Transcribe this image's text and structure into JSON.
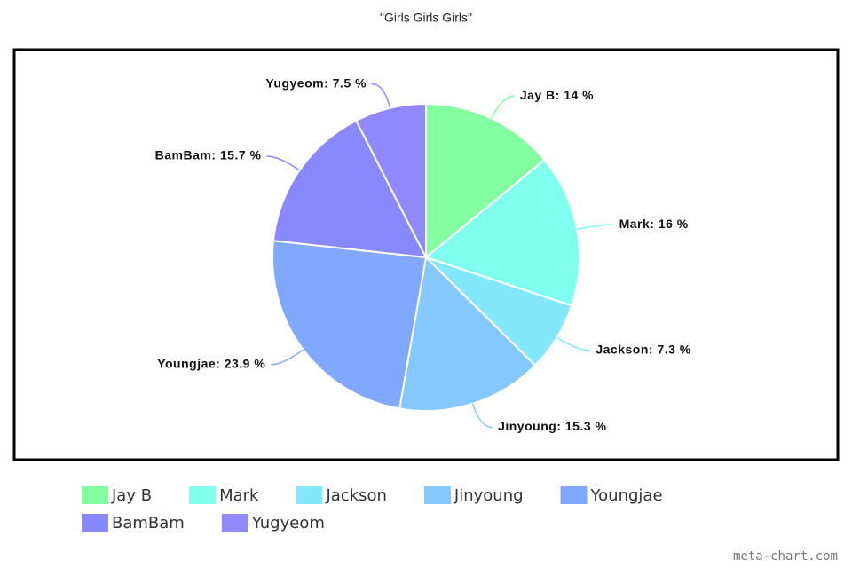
{
  "chart_data": {
    "type": "pie",
    "title": "\"Girls Girls Girls\"",
    "categories": [
      "Jay B",
      "Mark",
      "Jackson",
      "Jinyoung",
      "Youngjae",
      "BamBam",
      "Yugyeom"
    ],
    "values": [
      14,
      16,
      7.3,
      15.3,
      23.9,
      15.7,
      7.5
    ],
    "value_labels": [
      "Jay B: 14 %",
      "Mark: 16 %",
      "Jackson: 7.3 %",
      "Jinyoung: 15.3 %",
      "Youngjae: 23.9 %",
      "BamBam: 15.7 %",
      "Yugyeom: 7.5 %"
    ],
    "colors": [
      "#84ffa0",
      "#80ffee",
      "#84e8fc",
      "#84c8ff",
      "#80a8ff",
      "#8888ff",
      "#9088ff"
    ],
    "legend": "bottom",
    "watermark": "meta-chart.com"
  }
}
